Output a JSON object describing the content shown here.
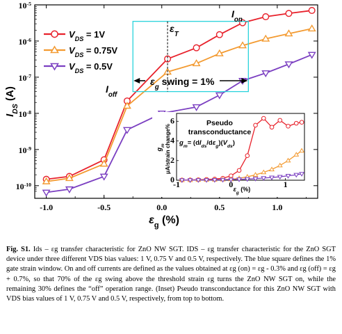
{
  "chart_data": {
    "type": "line",
    "main": {
      "xlabel": "εg (%)",
      "ylabel": "IDS (A)",
      "xticks": [
        "-1.0",
        "-0.5",
        "0.0",
        "0.5",
        "1.0"
      ],
      "yticks": [
        "10-10",
        "10-9",
        "10-8",
        "10-7",
        "10-6",
        "10-5"
      ],
      "xlim": [
        -1.1,
        1.35
      ],
      "ylim_log10": [
        -10.35,
        -5
      ],
      "y_scale": "log",
      "legend": "top-left",
      "series": [
        {
          "name": "VDS = 1V",
          "color": "#e8212b",
          "marker": "circle",
          "x": [
            -1.0,
            -0.8,
            -0.5,
            -0.3,
            0.05,
            0.3,
            0.5,
            0.7,
            0.9,
            1.1,
            1.3
          ],
          "y": [
            1.5e-10,
            1.8e-10,
            5.2e-10,
            2.2e-08,
            3.2e-07,
            6.5e-07,
            1.5e-06,
            3.2e-06,
            4.7e-06,
            5.8e-06,
            7e-06
          ]
        },
        {
          "name": "VDS = 0.75V",
          "color": "#f39a30",
          "marker": "triangle-up",
          "x": [
            -1.0,
            -0.8,
            -0.5,
            -0.3,
            0.05,
            0.3,
            0.5,
            0.7,
            0.9,
            1.1,
            1.3
          ],
          "y": [
            1.3e-10,
            1.6e-10,
            4e-10,
            1.6e-08,
            1.4e-07,
            2.4e-07,
            4.5e-07,
            7.5e-07,
            1.15e-06,
            1.6e-06,
            2.2e-06
          ]
        },
        {
          "name": "VDS = 0.5V",
          "color": "#7b3fc1",
          "marker": "triangle-down",
          "x": [
            -1.0,
            -0.8,
            -0.5,
            -0.3,
            0.0,
            0.3,
            0.5,
            0.7,
            0.9,
            1.1,
            1.3
          ],
          "y": [
            6.5e-11,
            8e-11,
            1.8e-10,
            3.5e-09,
            1e-08,
            1.5e-08,
            3.2e-08,
            8e-08,
            1.3e-07,
            2.3e-07,
            4.2e-07
          ]
        }
      ],
      "annotations": {
        "on_label": "Ion",
        "off_label": "Ioff",
        "eps_t_label": "εT",
        "swing_label": "εg swing = 1%",
        "window_color": "#29d3dc"
      }
    },
    "inset": {
      "title_line1": "Pseudo",
      "title_line2": "transconductance",
      "formula": "gm= (dIds/dεg)(Vds)",
      "ylabel_top": "gm",
      "ylabel": "μA/strain change%",
      "xlabel": "εg (%)",
      "xticks": [
        "-1",
        "0",
        "1"
      ],
      "yticks": [
        "0",
        "2",
        "4",
        "6"
      ],
      "xlim": [
        -1.0,
        1.35
      ],
      "ylim": [
        0,
        6.8
      ],
      "series": [
        {
          "color": "#e8212b",
          "marker": "circle",
          "x": [
            -0.9,
            -0.75,
            -0.6,
            -0.45,
            -0.3,
            -0.15,
            0.0,
            0.15,
            0.3,
            0.45,
            0.6,
            0.75,
            0.9,
            1.05,
            1.2,
            1.3
          ],
          "y": [
            0.02,
            0.03,
            0.05,
            0.08,
            0.12,
            0.2,
            0.45,
            1.0,
            2.5,
            5.6,
            6.3,
            5.4,
            6.1,
            5.5,
            5.8,
            5.9
          ]
        },
        {
          "color": "#f39a30",
          "marker": "triangle-up",
          "x": [
            -0.9,
            -0.75,
            -0.6,
            -0.45,
            -0.3,
            -0.15,
            0.0,
            0.15,
            0.3,
            0.45,
            0.6,
            0.75,
            0.9,
            1.05,
            1.2,
            1.3
          ],
          "y": [
            0.01,
            0.02,
            0.03,
            0.04,
            0.05,
            0.07,
            0.1,
            0.2,
            0.35,
            0.55,
            0.8,
            1.1,
            1.5,
            2.0,
            2.6,
            3.0
          ]
        },
        {
          "color": "#7b3fc1",
          "marker": "triangle-down",
          "x": [
            -0.9,
            -0.75,
            -0.6,
            -0.45,
            -0.3,
            -0.15,
            0.0,
            0.15,
            0.3,
            0.45,
            0.6,
            0.75,
            0.9,
            1.05,
            1.2,
            1.3
          ],
          "y": [
            0.01,
            0.01,
            0.02,
            0.02,
            0.03,
            0.04,
            0.06,
            0.09,
            0.12,
            0.16,
            0.22,
            0.28,
            0.35,
            0.45,
            0.55,
            0.65
          ]
        }
      ]
    }
  },
  "caption": {
    "label": "Fig. S1.",
    "text": " Ids – εg transfer characteristic for ZnO NW SGT. IDS – εg transfer characteristic for the ZnO SGT device under three different VDS bias values: 1 V, 0.75 V and 0.5 V, respectively. The blue square defines the 1% gate strain window. On and off currents are defined as the values obtained at εg (on) = εg - 0.3% and εg (off) = εg + 0.7%, so that 70% of the εg swing above the threshold strain εg turns the ZnO NW SGT on, while the remaining 30% defines the “off” operation range. (Inset) Pseudo transconductance for this ZnO NW SGT with VDS bias values of 1 V, 0.75 V and 0.5 V, respectively, from top to bottom."
  }
}
